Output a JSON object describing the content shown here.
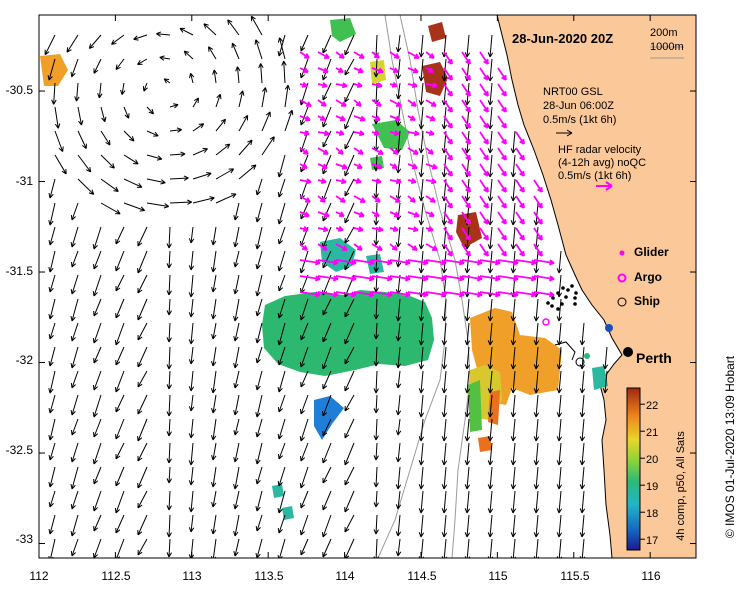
{
  "title": "28-Jun-2020 20Z",
  "depth_contours": [
    "200m",
    "1000m"
  ],
  "legend": {
    "model_lines": [
      "NRT00 GSL",
      "28-Jun 06:00Z",
      "0.5m/s (1kt 6h)"
    ],
    "radar_lines": [
      "HF radar velocity",
      "(4-12h avg) noQC",
      "0.5m/s (1kt 6h)"
    ]
  },
  "platforms": [
    {
      "label": "Glider",
      "symbol": "magenta-dot"
    },
    {
      "label": "Argo",
      "symbol": "magenta-ring"
    },
    {
      "label": "Ship",
      "symbol": "black-ring"
    }
  ],
  "place_label": "Perth",
  "axes": {
    "x_ticks": [
      "112",
      "112.5",
      "113",
      "113.5",
      "114",
      "114.5",
      "115",
      "115.5",
      "116"
    ],
    "y_ticks": [
      "-30.5",
      "-31",
      "-31.5",
      "-32",
      "-32.5",
      "-33"
    ],
    "x_range": [
      112,
      116.3
    ],
    "y_range": [
      -33.08,
      -30.08
    ]
  },
  "colorbar": {
    "label": "4h comp, p50, All Sats",
    "ticks": [
      "17",
      "18",
      "19",
      "20",
      "21",
      "22"
    ],
    "range": [
      16.6,
      22.6
    ]
  },
  "credit": "© IMOS 01-Jul-2020 13:09 Hobart",
  "colors": {
    "land": "#fbc89a",
    "model_arrow": "#000000",
    "radar_arrow": "#ff00ff",
    "contour": "#9a9a9a",
    "coast": "#000000"
  }
}
